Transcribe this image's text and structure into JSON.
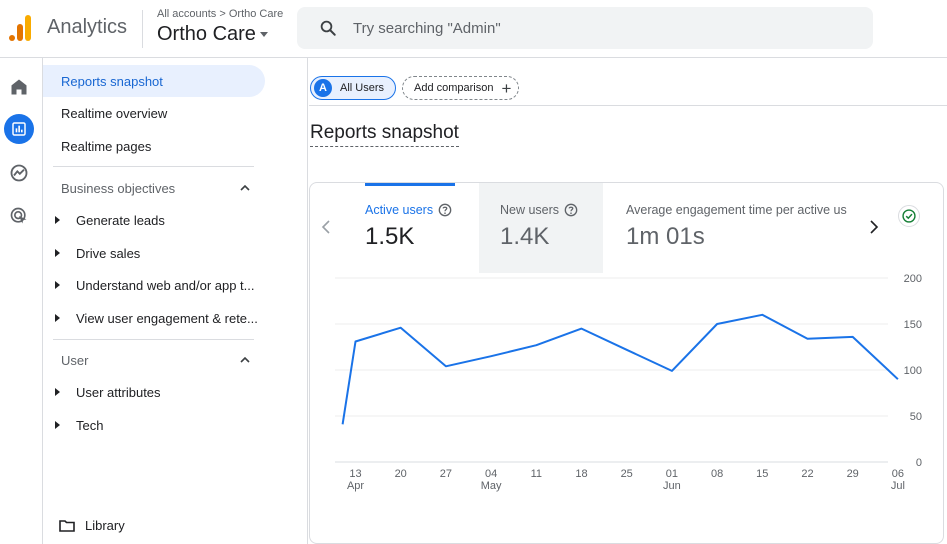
{
  "app": {
    "name": "Analytics"
  },
  "header": {
    "breadcrumb": "All accounts > Ortho Care",
    "property": "Ortho Care",
    "search_placeholder": "Try searching \"Admin\""
  },
  "colors": {
    "accent": "#1a73e8",
    "active_bg": "#e8f0fe",
    "logo_orange": "#f9ab00",
    "logo_dark": "#e37400"
  },
  "rail": {
    "icons": [
      "home-icon",
      "reports-icon",
      "explore-icon",
      "advertising-icon"
    ]
  },
  "nav": {
    "top_items": [
      "Reports snapshot",
      "Realtime overview",
      "Realtime pages"
    ],
    "section1": {
      "title": "Business objectives",
      "items": [
        "Generate leads",
        "Drive sales",
        "Understand web and/or app t...",
        "View user engagement & rete..."
      ]
    },
    "section2": {
      "title": "User",
      "items": [
        "User attributes",
        "Tech"
      ]
    },
    "library": "Library"
  },
  "main": {
    "chip_all_badge": "A",
    "chip_all": "All Users",
    "chip_add": "Add comparison",
    "title": "Reports snapshot",
    "metrics": [
      {
        "label": "Active users",
        "value": "1.5K"
      },
      {
        "label": "New users",
        "value": "1.4K"
      },
      {
        "label": "Average engagement time per active us",
        "value": "1m 01s"
      }
    ]
  },
  "chart_data": {
    "type": "line",
    "y_ticks": [
      "200",
      "150",
      "100",
      "50",
      "0"
    ],
    "ylim": [
      0,
      200
    ],
    "x_ticks": [
      {
        "day": "13",
        "month": "Apr"
      },
      {
        "day": "20",
        "month": ""
      },
      {
        "day": "27",
        "month": ""
      },
      {
        "day": "04",
        "month": "May"
      },
      {
        "day": "11",
        "month": ""
      },
      {
        "day": "18",
        "month": ""
      },
      {
        "day": "25",
        "month": ""
      },
      {
        "day": "01",
        "month": "Jun"
      },
      {
        "day": "08",
        "month": ""
      },
      {
        "day": "15",
        "month": ""
      },
      {
        "day": "22",
        "month": ""
      },
      {
        "day": "29",
        "month": ""
      },
      {
        "day": "06",
        "month": "Jul"
      }
    ],
    "series": [
      {
        "color": "#1a73e8",
        "x": [
          "Apr 11",
          "Apr 13",
          "Apr 20",
          "Apr 27",
          "May 04",
          "May 11",
          "May 18",
          "May 25",
          "Jun 01",
          "Jun 08",
          "Jun 15",
          "Jun 22",
          "Jun 29",
          "Jul 06"
        ],
        "values": [
          41,
          131,
          146,
          104,
          115,
          127,
          145,
          122,
          99,
          150,
          160,
          134,
          136,
          90
        ]
      }
    ]
  }
}
